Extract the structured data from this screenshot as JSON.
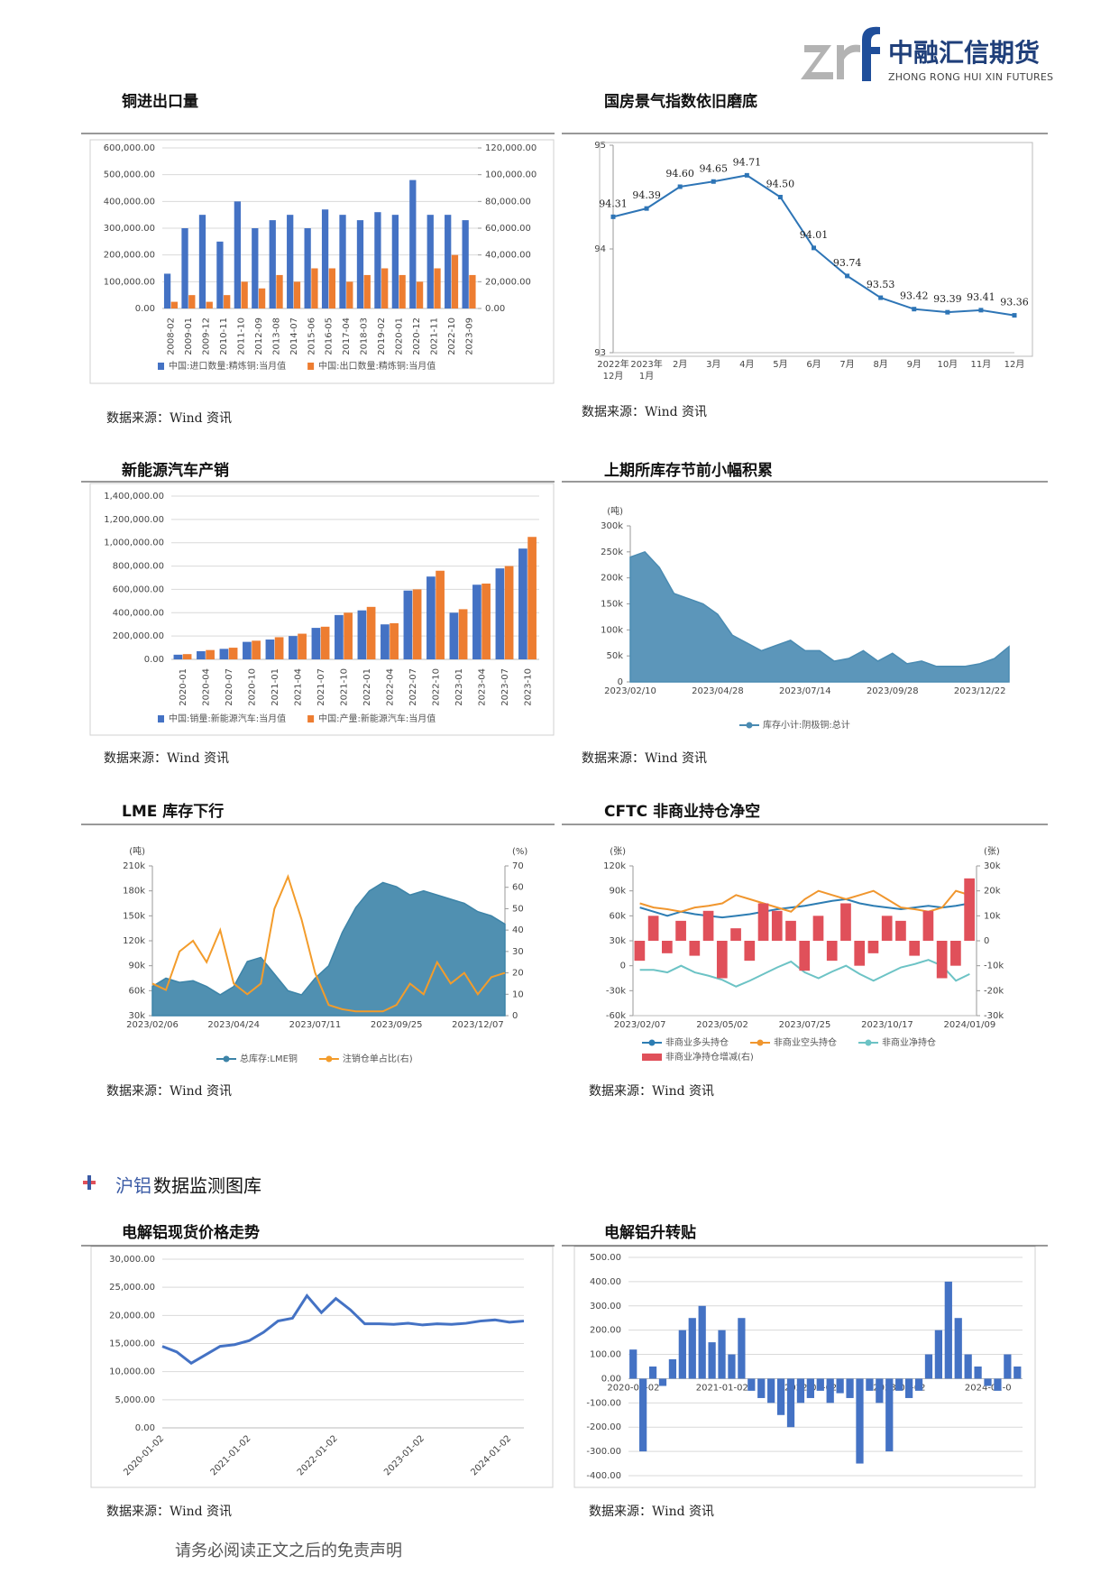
{
  "header": {
    "logo_cn": "中融汇信期货",
    "logo_en": "ZHONG RONG HUI XIN FUTURES"
  },
  "section": {
    "title_prefix": "沪铝",
    "title_rest": "数据监测图库"
  },
  "footer": "请务必阅读正文之后的免责声明",
  "chart_data": [
    {
      "type": "bar",
      "title": "铜进出口量",
      "source": "数据来源：Wind 资讯",
      "grid": true,
      "categories": [
        "2008-02",
        "2009-01",
        "2009-12",
        "2010-11",
        "2011-10",
        "2012-09",
        "2013-08",
        "2014-07",
        "2015-06",
        "2016-05",
        "2017-04",
        "2018-03",
        "2019-02",
        "2020-01",
        "2020-12",
        "2021-11",
        "2022-10",
        "2023-09"
      ],
      "series": [
        {
          "name": "中国:进口数量:精炼铜:当月值",
          "color": "#4472c4",
          "values": [
            130000,
            300000,
            350000,
            250000,
            400000,
            300000,
            330000,
            350000,
            300000,
            370000,
            350000,
            330000,
            360000,
            350000,
            480000,
            350000,
            350000,
            330000
          ]
        },
        {
          "name": "中国:出口数量:精炼铜:当月值",
          "color": "#ed7d31",
          "axis": "y2",
          "values": [
            5000,
            10000,
            5000,
            10000,
            20000,
            15000,
            25000,
            20000,
            30000,
            30000,
            20000,
            25000,
            30000,
            25000,
            20000,
            30000,
            40000,
            25000
          ]
        }
      ],
      "ylim": [
        0,
        600000
      ],
      "yticks": [
        {
          "value": 0,
          "label": "0.00"
        },
        {
          "value": 100000,
          "label": "100,000.00"
        },
        {
          "value": 200000,
          "label": "200,000.00"
        },
        {
          "value": 300000,
          "label": "300,000.00"
        },
        {
          "value": 400000,
          "label": "400,000.00"
        },
        {
          "value": 500000,
          "label": "500,000.00"
        },
        {
          "value": 600000,
          "label": "600,000.00"
        }
      ],
      "y2lim": [
        0,
        120000
      ],
      "y2ticks": [
        {
          "value": 0,
          "label": "0.00"
        },
        {
          "value": 20000,
          "label": "20,000.00"
        },
        {
          "value": 40000,
          "label": "40,000.00"
        },
        {
          "value": 60000,
          "label": "60,000.00"
        },
        {
          "value": 80000,
          "label": "80,000.00"
        },
        {
          "value": 100000,
          "label": "100,000.00"
        },
        {
          "value": 120000,
          "label": "120,000.00"
        }
      ]
    },
    {
      "type": "line",
      "title": "国房景气指数依旧磨底",
      "source": "数据来源：Wind 资讯",
      "grid": false,
      "categories": [
        "2022年\n12月",
        "2023年\n1月",
        "2月",
        "3月",
        "4月",
        "5月",
        "6月",
        "7月",
        "8月",
        "9月",
        "10月",
        "11月",
        "12月"
      ],
      "series": [
        {
          "color": "#2e75b6",
          "values": [
            94.31,
            94.39,
            94.6,
            94.65,
            94.71,
            94.5,
            94.01,
            93.74,
            93.53,
            93.42,
            93.39,
            93.41,
            93.36
          ],
          "value_labels": [
            "94.31",
            "94.39",
            "94.60",
            "94.65",
            "94.71",
            "94.50",
            "94.01",
            "93.74",
            "93.53",
            "93.42",
            "93.39",
            "93.41",
            "93.36"
          ]
        }
      ],
      "ylim": [
        93,
        95
      ],
      "yticks": [
        93,
        94,
        95
      ]
    },
    {
      "type": "bar",
      "title": "新能源汽车产销",
      "source": "数据来源：Wind 资讯",
      "grid": true,
      "categories": [
        "2020-01",
        "2020-04",
        "2020-07",
        "2020-10",
        "2021-01",
        "2021-04",
        "2021-07",
        "2021-10",
        "2022-01",
        "2022-04",
        "2022-07",
        "2022-10",
        "2023-01",
        "2023-04",
        "2023-07",
        "2023-10"
      ],
      "series": [
        {
          "name": "中国:销量:新能源汽车:当月值",
          "color": "#4472c4",
          "values": [
            40000,
            70000,
            90000,
            150000,
            170000,
            200000,
            270000,
            380000,
            420000,
            300000,
            590000,
            710000,
            400000,
            640000,
            780000,
            950000
          ]
        },
        {
          "name": "中国:产量:新能源汽车:当月值",
          "color": "#ed7d31",
          "values": [
            45000,
            80000,
            100000,
            160000,
            190000,
            220000,
            280000,
            400000,
            450000,
            310000,
            600000,
            760000,
            430000,
            650000,
            800000,
            1050000
          ]
        }
      ],
      "ylim": [
        0,
        1400000
      ],
      "yticks": [
        {
          "value": 0,
          "label": "0.00"
        },
        {
          "value": 200000,
          "label": "200,000.00"
        },
        {
          "value": 400000,
          "label": "400,000.00"
        },
        {
          "value": 600000,
          "label": "600,000.00"
        },
        {
          "value": 800000,
          "label": "800,000.00"
        },
        {
          "value": 1000000,
          "label": "1,000,000.00"
        },
        {
          "value": 1200000,
          "label": "1,200,000.00"
        },
        {
          "value": 1400000,
          "label": "1,400,000.00"
        }
      ]
    },
    {
      "type": "area",
      "title": "上期所库存节前小幅积累",
      "source": "数据来源：Wind 资讯",
      "grid": false,
      "y_label": "(吨)",
      "categories": [
        "2023/02/10",
        null,
        null,
        null,
        null,
        null,
        "2023/04/28",
        null,
        null,
        null,
        null,
        null,
        "2023/07/14",
        null,
        null,
        null,
        null,
        null,
        "2023/09/28",
        null,
        null,
        null,
        null,
        null,
        "2023/12/22",
        null,
        null
      ],
      "series": [
        {
          "name": "库存小计:阴极铜:总计",
          "color": "#4a8bb2",
          "values": [
            240000,
            250000,
            220000,
            170000,
            160000,
            150000,
            130000,
            90000,
            75000,
            60000,
            70000,
            80000,
            60000,
            60000,
            40000,
            45000,
            60000,
            40000,
            55000,
            35000,
            40000,
            30000,
            30000,
            30000,
            35000,
            45000,
            68000
          ]
        }
      ],
      "ylim": [
        0,
        300000
      ],
      "yticks": [
        0,
        {
          "value": 50000,
          "label": "50k"
        },
        {
          "value": 100000,
          "label": "100k"
        },
        {
          "value": 150000,
          "label": "150k"
        },
        {
          "value": 200000,
          "label": "200k"
        },
        {
          "value": 250000,
          "label": "250k"
        },
        {
          "value": 300000,
          "label": "300k"
        }
      ]
    },
    {
      "type": "combo",
      "title": "LME 库存下行",
      "source": "数据来源：Wind 资讯",
      "grid": false,
      "y_label": "(吨)",
      "y2_label": "(%)",
      "categories": [
        "2023/02/06",
        null,
        null,
        null,
        null,
        null,
        "2023/04/24",
        null,
        null,
        null,
        null,
        null,
        "2023/07/11",
        null,
        null,
        null,
        null,
        null,
        "2023/09/25",
        null,
        null,
        null,
        null,
        null,
        "2023/12/07",
        null,
        null
      ],
      "series": [
        {
          "name": "总库存:LME铜",
          "type": "area",
          "color": "#3d84a8",
          "values": [
            65000,
            75000,
            70000,
            72000,
            65000,
            55000,
            65000,
            95000,
            100000,
            80000,
            60000,
            55000,
            75000,
            90000,
            130000,
            160000,
            180000,
            190000,
            185000,
            175000,
            180000,
            175000,
            170000,
            165000,
            155000,
            150000,
            140000
          ]
        },
        {
          "name": "注销仓单占比(右)",
          "type": "line",
          "axis": "y2",
          "color": "#f39c2b",
          "values": [
            15,
            12,
            30,
            35,
            25,
            40,
            15,
            10,
            15,
            50,
            65,
            45,
            20,
            5,
            3,
            2,
            2,
            2,
            5,
            15,
            10,
            25,
            15,
            20,
            10,
            18,
            20
          ]
        }
      ],
      "ylim": [
        30000,
        210000
      ],
      "yticks": [
        {
          "value": 30000,
          "label": "30k"
        },
        {
          "value": 60000,
          "label": "60k"
        },
        {
          "value": 90000,
          "label": "90k"
        },
        {
          "value": 120000,
          "label": "120k"
        },
        {
          "value": 150000,
          "label": "150k"
        },
        {
          "value": 180000,
          "label": "180k"
        },
        {
          "value": 210000,
          "label": "210k"
        }
      ],
      "y2lim": [
        0,
        70
      ],
      "y2ticks": [
        0,
        10,
        20,
        30,
        40,
        50,
        60,
        70
      ]
    },
    {
      "type": "combo",
      "title": "CFTC 非商业持仓净空",
      "source": "数据来源：Wind 资讯",
      "grid": false,
      "y_label": "(张)",
      "y2_label": "(张)",
      "categories": [
        "2023/02/07",
        null,
        null,
        null,
        null,
        null,
        "2023/05/02",
        null,
        null,
        null,
        null,
        null,
        "2023/07/25",
        null,
        null,
        null,
        null,
        null,
        "2023/10/17",
        null,
        null,
        null,
        null,
        null,
        "2024/01/09"
      ],
      "series": [
        {
          "name": "非商业多头持仓",
          "type": "line",
          "color": "#2d7db3",
          "values": [
            70000,
            65000,
            60000,
            65000,
            62000,
            60000,
            58000,
            60000,
            62000,
            65000,
            68000,
            70000,
            72000,
            75000,
            78000,
            80000,
            75000,
            72000,
            70000,
            68000,
            70000,
            72000,
            70000,
            72000,
            75000
          ]
        },
        {
          "name": "非商业空头持仓",
          "type": "line",
          "color": "#f0962e",
          "values": [
            75000,
            70000,
            68000,
            65000,
            70000,
            72000,
            75000,
            85000,
            80000,
            75000,
            70000,
            65000,
            80000,
            90000,
            85000,
            80000,
            85000,
            90000,
            80000,
            70000,
            68000,
            65000,
            70000,
            90000,
            85000
          ]
        },
        {
          "name": "非商业净持仓",
          "type": "line",
          "color": "#6cc3c5",
          "values": [
            -5000,
            -5000,
            -8000,
            0,
            -8000,
            -12000,
            -17000,
            -25000,
            -18000,
            -10000,
            -2000,
            5000,
            -8000,
            -15000,
            -7000,
            0,
            -10000,
            -18000,
            -10000,
            -2000,
            2000,
            7000,
            0,
            -18000,
            -10000
          ]
        },
        {
          "name": "非商业净持仓增减(右)",
          "type": "bar",
          "axis": "y2",
          "color": "#e0505a",
          "values": [
            -8000,
            10000,
            -5000,
            8000,
            -6000,
            12000,
            -15000,
            5000,
            -8000,
            15000,
            12000,
            8000,
            -12000,
            10000,
            -8000,
            15000,
            -10000,
            -5000,
            10000,
            8000,
            -6000,
            12000,
            -15000,
            -10000,
            25000
          ]
        }
      ],
      "ylim": [
        -60000,
        120000
      ],
      "yticks": [
        {
          "value": -60000,
          "label": "-60k"
        },
        {
          "value": -30000,
          "label": "-30k"
        },
        0,
        {
          "value": 30000,
          "label": "30k"
        },
        {
          "value": 60000,
          "label": "60k"
        },
        {
          "value": 90000,
          "label": "90k"
        },
        {
          "value": 120000,
          "label": "120k"
        }
      ],
      "y2lim": [
        -30000,
        30000
      ],
      "y2ticks": [
        {
          "value": -30000,
          "label": "-30k"
        },
        {
          "value": -20000,
          "label": "-20k"
        },
        {
          "value": -10000,
          "label": "-10k"
        },
        0,
        {
          "value": 10000,
          "label": "10k"
        },
        {
          "value": 20000,
          "label": "20k"
        },
        {
          "value": 30000,
          "label": "30k"
        }
      ]
    },
    {
      "type": "line",
      "title": "电解铝现货价格走势",
      "source": "数据来源：Wind 资讯",
      "grid": true,
      "categories": [
        "2020-01-02",
        null,
        null,
        null,
        null,
        null,
        "2021-01-02",
        null,
        null,
        null,
        null,
        null,
        "2022-01-02",
        null,
        null,
        null,
        null,
        null,
        "2023-01-02",
        null,
        null,
        null,
        null,
        null,
        "2024-01-02",
        null
      ],
      "series": [
        {
          "color": "#4472c4",
          "values": [
            14500,
            13500,
            11500,
            13000,
            14500,
            14800,
            15500,
            17000,
            19000,
            19500,
            23500,
            20500,
            23000,
            21000,
            18500,
            18500,
            18400,
            18600,
            18300,
            18500,
            18400,
            18600,
            19000,
            19200,
            18800,
            19000
          ]
        }
      ],
      "ylim": [
        0,
        30000
      ],
      "yticks": [
        {
          "value": 0,
          "label": "0.00"
        },
        {
          "value": 5000,
          "label": "5,000.00"
        },
        {
          "value": 10000,
          "label": "10,000.00"
        },
        {
          "value": 15000,
          "label": "15,000.00"
        },
        {
          "value": 20000,
          "label": "20,000.00"
        },
        {
          "value": 25000,
          "label": "25,000.00"
        },
        {
          "value": 30000,
          "label": "30,000.00"
        }
      ]
    },
    {
      "type": "bar",
      "title": "电解铝升转贴",
      "source": "数据来源：Wind 资讯",
      "grid": true,
      "categories": [
        "2020-01-02",
        null,
        null,
        null,
        null,
        null,
        null,
        null,
        null,
        "2021-01-02",
        null,
        null,
        null,
        null,
        null,
        null,
        null,
        null,
        "2022-01-02",
        null,
        null,
        null,
        null,
        null,
        null,
        null,
        null,
        "2023-01-02",
        null,
        null,
        null,
        null,
        null,
        null,
        null,
        null,
        "2024-01-0",
        null,
        null,
        null
      ],
      "series": [
        {
          "color": "#4472c4",
          "values": [
            120,
            -300,
            50,
            -30,
            80,
            200,
            250,
            300,
            150,
            200,
            100,
            250,
            -50,
            -80,
            -100,
            -150,
            -200,
            -100,
            -80,
            -50,
            -100,
            -60,
            -80,
            -350,
            -50,
            -100,
            -300,
            -50,
            -80,
            -50,
            100,
            200,
            400,
            250,
            100,
            50,
            -30,
            -50,
            100,
            50
          ]
        }
      ],
      "ylim": [
        -400,
        500
      ],
      "yticks": [
        {
          "value": -400,
          "label": "-400.00"
        },
        {
          "value": -300,
          "label": "-300.00"
        },
        {
          "value": -200,
          "label": "-200.00"
        },
        {
          "value": -100,
          "label": "-100.00"
        },
        {
          "value": 0,
          "label": "0.00"
        },
        {
          "value": 100,
          "label": "100.00"
        },
        {
          "value": 200,
          "label": "200.00"
        },
        {
          "value": 300,
          "label": "300.00"
        },
        {
          "value": 400,
          "label": "400.00"
        },
        {
          "value": 500,
          "label": "500.00"
        }
      ]
    }
  ]
}
